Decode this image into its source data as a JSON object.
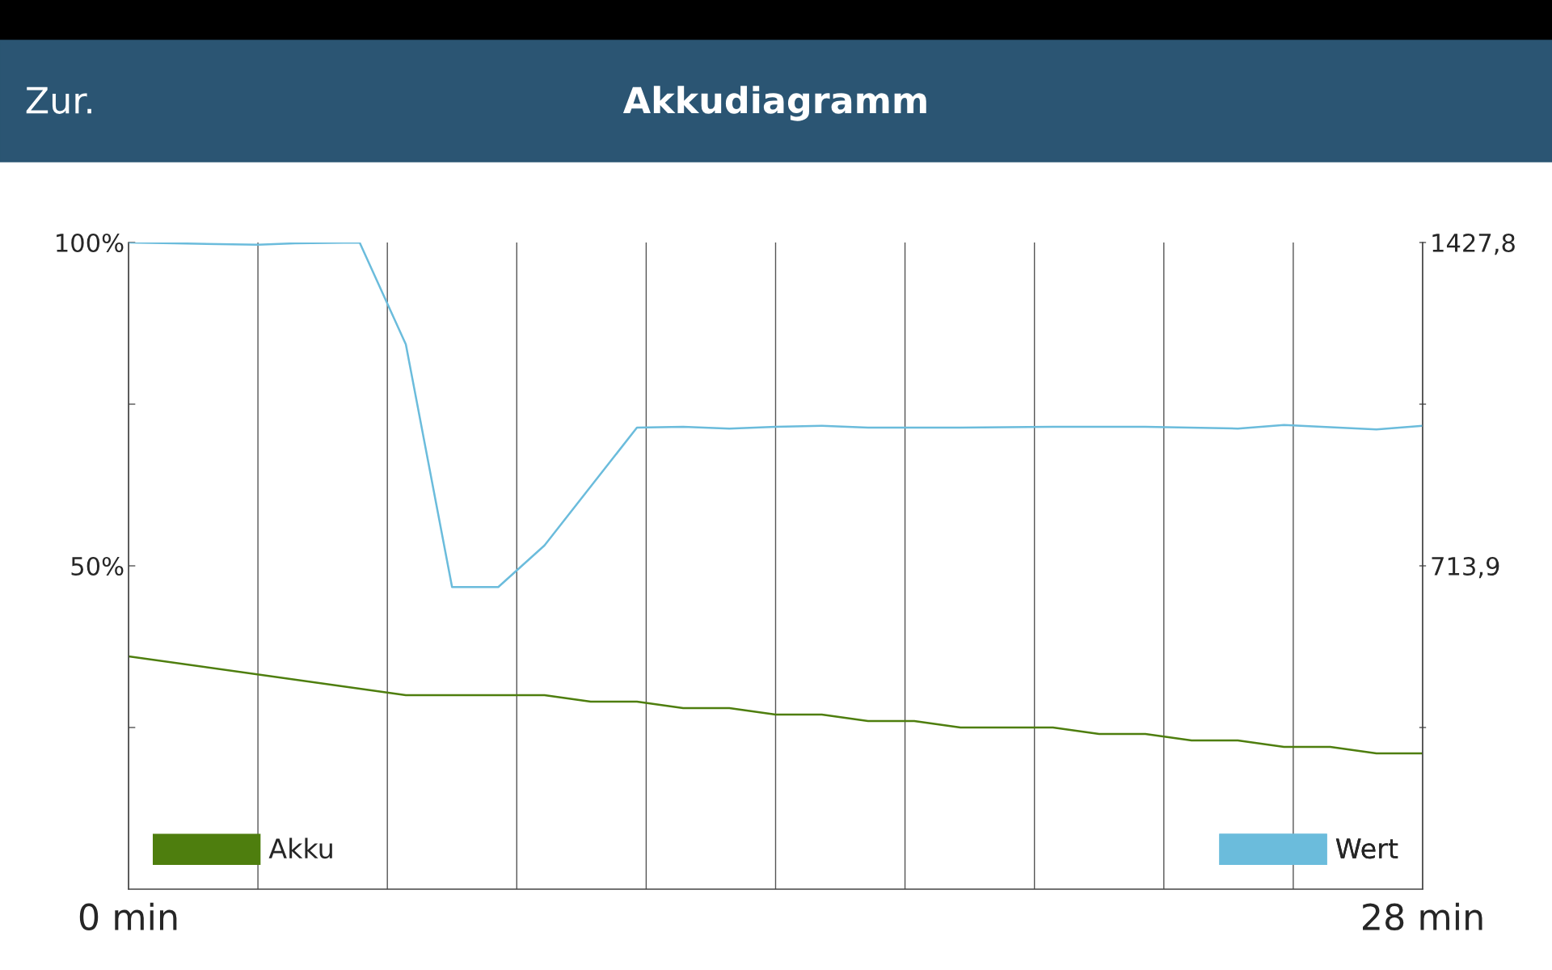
{
  "chart_data": {
    "type": "line",
    "title": "Akkudiagramm",
    "annotations": [
      "Zur."
    ],
    "xlim": [
      0,
      28
    ],
    "xticks": [
      {
        "value": 0,
        "label": "0 min"
      },
      {
        "value": 2.8,
        "label": null
      },
      {
        "value": 5.6,
        "label": null
      },
      {
        "value": 8.4,
        "label": null
      },
      {
        "value": 11.2,
        "label": null
      },
      {
        "value": 14,
        "label": null
      },
      {
        "value": 16.8,
        "label": null
      },
      {
        "value": 19.6,
        "label": null
      },
      {
        "value": 22.4,
        "label": null
      },
      {
        "value": 25.2,
        "label": null
      },
      {
        "value": 28,
        "label": "28 min"
      }
    ],
    "ylim": [
      0,
      100
    ],
    "yticks": [
      {
        "value": 25,
        "label": null
      },
      {
        "value": 50,
        "label": "50%"
      },
      {
        "value": 75,
        "label": null
      },
      {
        "value": 100,
        "label": "100%"
      }
    ],
    "y2lim": [
      0,
      1427.8
    ],
    "y2ticks": [
      {
        "value": 356.95,
        "label": null
      },
      {
        "value": 713.9,
        "label": "713,9"
      },
      {
        "value": 1070.85,
        "label": null
      },
      {
        "value": 1427.8,
        "label": "1427,8"
      }
    ],
    "grid": "x",
    "legend": "bottom",
    "series": [
      {
        "name": "Akku",
        "color": "#4e7e0e",
        "x": [
          0,
          6,
          9,
          10,
          11,
          12,
          13,
          14,
          15,
          16,
          17,
          18,
          20,
          21,
          22,
          23,
          24,
          25,
          26,
          27,
          28
        ],
        "values": [
          36,
          30,
          30,
          29,
          29,
          28,
          28,
          27,
          27,
          26,
          26,
          25,
          25,
          24,
          24,
          23,
          23,
          22,
          22,
          21,
          21
        ]
      },
      {
        "name": "Wert",
        "color": "#6bbcdc",
        "axis": "y2",
        "x": [
          0,
          1,
          2.8,
          3.6,
          5,
          6,
          7,
          8,
          9,
          11,
          12,
          13,
          14,
          15,
          16,
          18,
          20,
          22,
          24,
          25,
          27,
          28
        ],
        "values": [
          1427.8,
          1426,
          1423,
          1426,
          1427.8,
          1203,
          667,
          667,
          759,
          1019,
          1021,
          1017,
          1021,
          1023,
          1019,
          1019,
          1021,
          1021,
          1017,
          1025,
          1015,
          1023
        ]
      }
    ]
  }
}
